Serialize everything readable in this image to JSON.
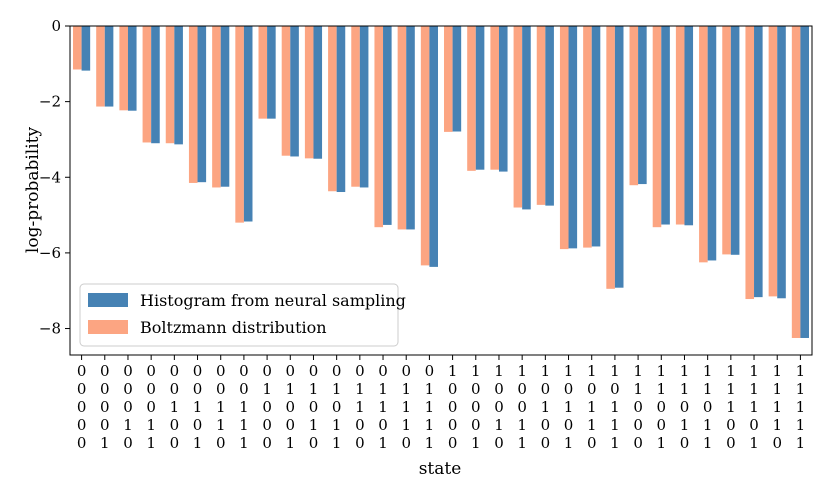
{
  "chart_data": {
    "type": "bar",
    "xlabel": "state",
    "ylabel": "log-probability",
    "ylim": [
      -8.7,
      0
    ],
    "yticks": [
      0,
      -2,
      -4,
      -6,
      -8
    ],
    "ytick_labels": [
      "0",
      "−2",
      "−4",
      "−6",
      "−8"
    ],
    "grid": false,
    "legend_position": "lower-left",
    "categories": [
      [
        "0",
        "0",
        "0",
        "0",
        "0"
      ],
      [
        "0",
        "0",
        "0",
        "0",
        "1"
      ],
      [
        "0",
        "0",
        "0",
        "1",
        "0"
      ],
      [
        "0",
        "0",
        "0",
        "1",
        "1"
      ],
      [
        "0",
        "0",
        "1",
        "0",
        "0"
      ],
      [
        "0",
        "0",
        "1",
        "0",
        "1"
      ],
      [
        "0",
        "0",
        "1",
        "1",
        "0"
      ],
      [
        "0",
        "0",
        "1",
        "1",
        "1"
      ],
      [
        "0",
        "1",
        "0",
        "0",
        "0"
      ],
      [
        "0",
        "1",
        "0",
        "0",
        "1"
      ],
      [
        "0",
        "1",
        "0",
        "1",
        "0"
      ],
      [
        "0",
        "1",
        "0",
        "1",
        "1"
      ],
      [
        "0",
        "1",
        "1",
        "0",
        "0"
      ],
      [
        "0",
        "1",
        "1",
        "0",
        "1"
      ],
      [
        "0",
        "1",
        "1",
        "1",
        "0"
      ],
      [
        "0",
        "1",
        "1",
        "1",
        "1"
      ],
      [
        "1",
        "0",
        "0",
        "0",
        "0"
      ],
      [
        "1",
        "0",
        "0",
        "0",
        "1"
      ],
      [
        "1",
        "0",
        "0",
        "1",
        "0"
      ],
      [
        "1",
        "0",
        "0",
        "1",
        "1"
      ],
      [
        "1",
        "0",
        "1",
        "0",
        "0"
      ],
      [
        "1",
        "0",
        "1",
        "0",
        "1"
      ],
      [
        "1",
        "0",
        "1",
        "1",
        "0"
      ],
      [
        "1",
        "0",
        "1",
        "1",
        "1"
      ],
      [
        "1",
        "1",
        "0",
        "0",
        "0"
      ],
      [
        "1",
        "1",
        "0",
        "0",
        "1"
      ],
      [
        "1",
        "1",
        "0",
        "1",
        "0"
      ],
      [
        "1",
        "1",
        "0",
        "1",
        "1"
      ],
      [
        "1",
        "1",
        "1",
        "0",
        "0"
      ],
      [
        "1",
        "1",
        "1",
        "0",
        "1"
      ],
      [
        "1",
        "1",
        "1",
        "1",
        "0"
      ],
      [
        "1",
        "1",
        "1",
        "1",
        "1"
      ]
    ],
    "series": [
      {
        "name": "Boltzmann distribution",
        "color": "#fca582",
        "values": [
          -1.15,
          -2.13,
          -2.23,
          -3.08,
          -3.1,
          -4.15,
          -4.27,
          -5.2,
          -2.45,
          -3.43,
          -3.5,
          -4.37,
          -4.25,
          -5.32,
          -5.38,
          -6.33,
          -2.8,
          -3.83,
          -3.8,
          -4.8,
          -4.73,
          -5.9,
          -5.86,
          -6.95,
          -4.21,
          -5.32,
          -5.25,
          -6.25,
          -6.04,
          -7.22,
          -7.15,
          -8.25
        ]
      },
      {
        "name": "Histogram from neural sampling",
        "color": "#4682b4",
        "values": [
          -1.18,
          -2.13,
          -2.24,
          -3.1,
          -3.13,
          -4.13,
          -4.25,
          -5.17,
          -2.45,
          -3.45,
          -3.51,
          -4.39,
          -4.27,
          -5.26,
          -5.38,
          -6.37,
          -2.79,
          -3.8,
          -3.85,
          -4.85,
          -4.75,
          -5.88,
          -5.83,
          -6.92,
          -4.18,
          -5.25,
          -5.27,
          -6.2,
          -6.05,
          -7.17,
          -7.2,
          -8.25
        ]
      }
    ],
    "legend": [
      "Histogram from neural sampling",
      "Boltzmann distribution"
    ]
  }
}
